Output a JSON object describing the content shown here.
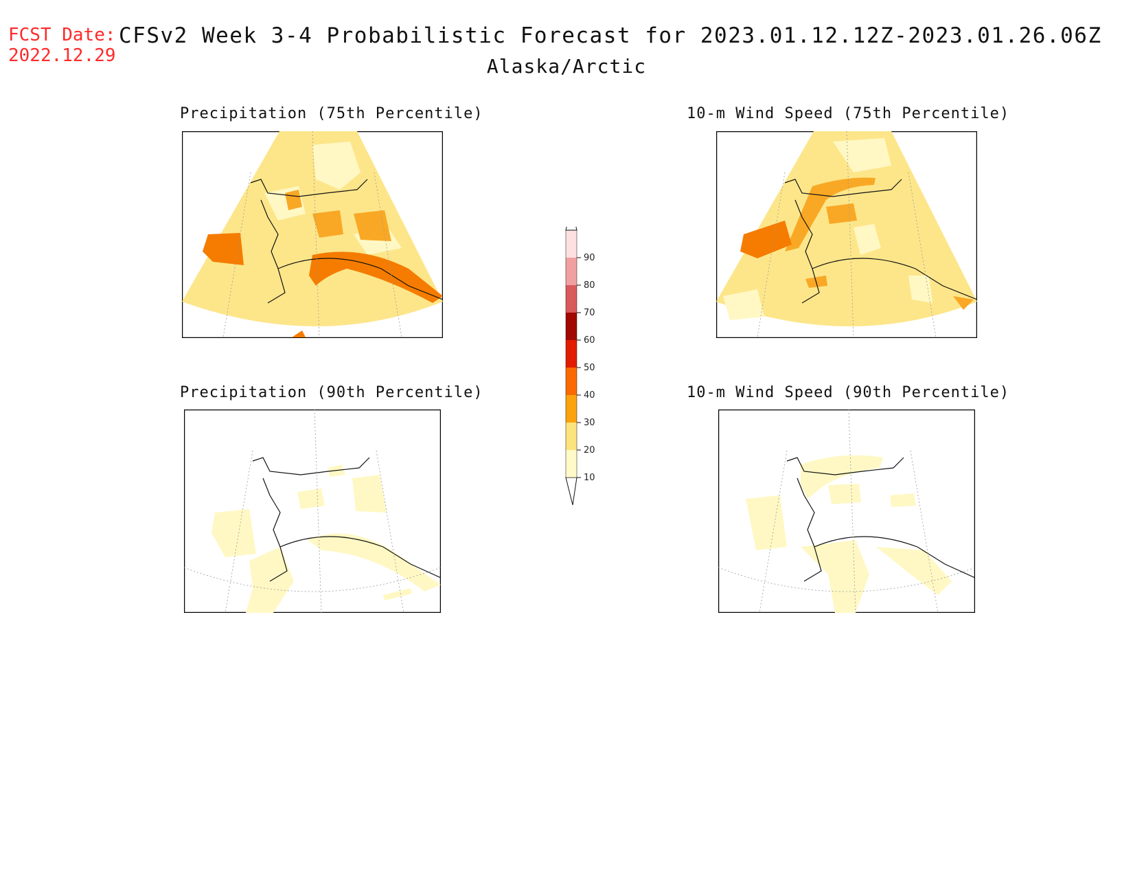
{
  "header": {
    "fcst_label": "FCST Date:",
    "fcst_date": "2022.12.29",
    "title": "CFSv2 Week 3-4 Probabilistic Forecast for 2023.01.12.12Z-2023.01.26.06Z",
    "region": "Alaska/Arctic"
  },
  "panels": [
    {
      "title": "Precipitation (75th Percentile)"
    },
    {
      "title": "10-m Wind Speed (75th Percentile)"
    },
    {
      "title": "Precipitation (90th Percentile)"
    },
    {
      "title": "10-m Wind Speed (90th Percentile)"
    }
  ],
  "colorbar": {
    "levels": [
      {
        "value": "10",
        "color": "#fffac8"
      },
      {
        "value": "20",
        "color": "#fde37c"
      },
      {
        "value": "30",
        "color": "#fba30e"
      },
      {
        "value": "40",
        "color": "#fa6a00"
      },
      {
        "value": "50",
        "color": "#e21c00"
      },
      {
        "value": "60",
        "color": "#a00800"
      },
      {
        "value": "70",
        "color": "#d85a5a"
      },
      {
        "value": "80",
        "color": "#f0a0a0"
      },
      {
        "value": "90",
        "color": "#fde0e0"
      }
    ]
  },
  "colors": {
    "fcst_label": "#ff2a2a",
    "base_fill": "#fde68a",
    "light_fill": "#fff8c4",
    "orange_fill": "#f9a825",
    "dark_orange_fill": "#f57c00"
  }
}
